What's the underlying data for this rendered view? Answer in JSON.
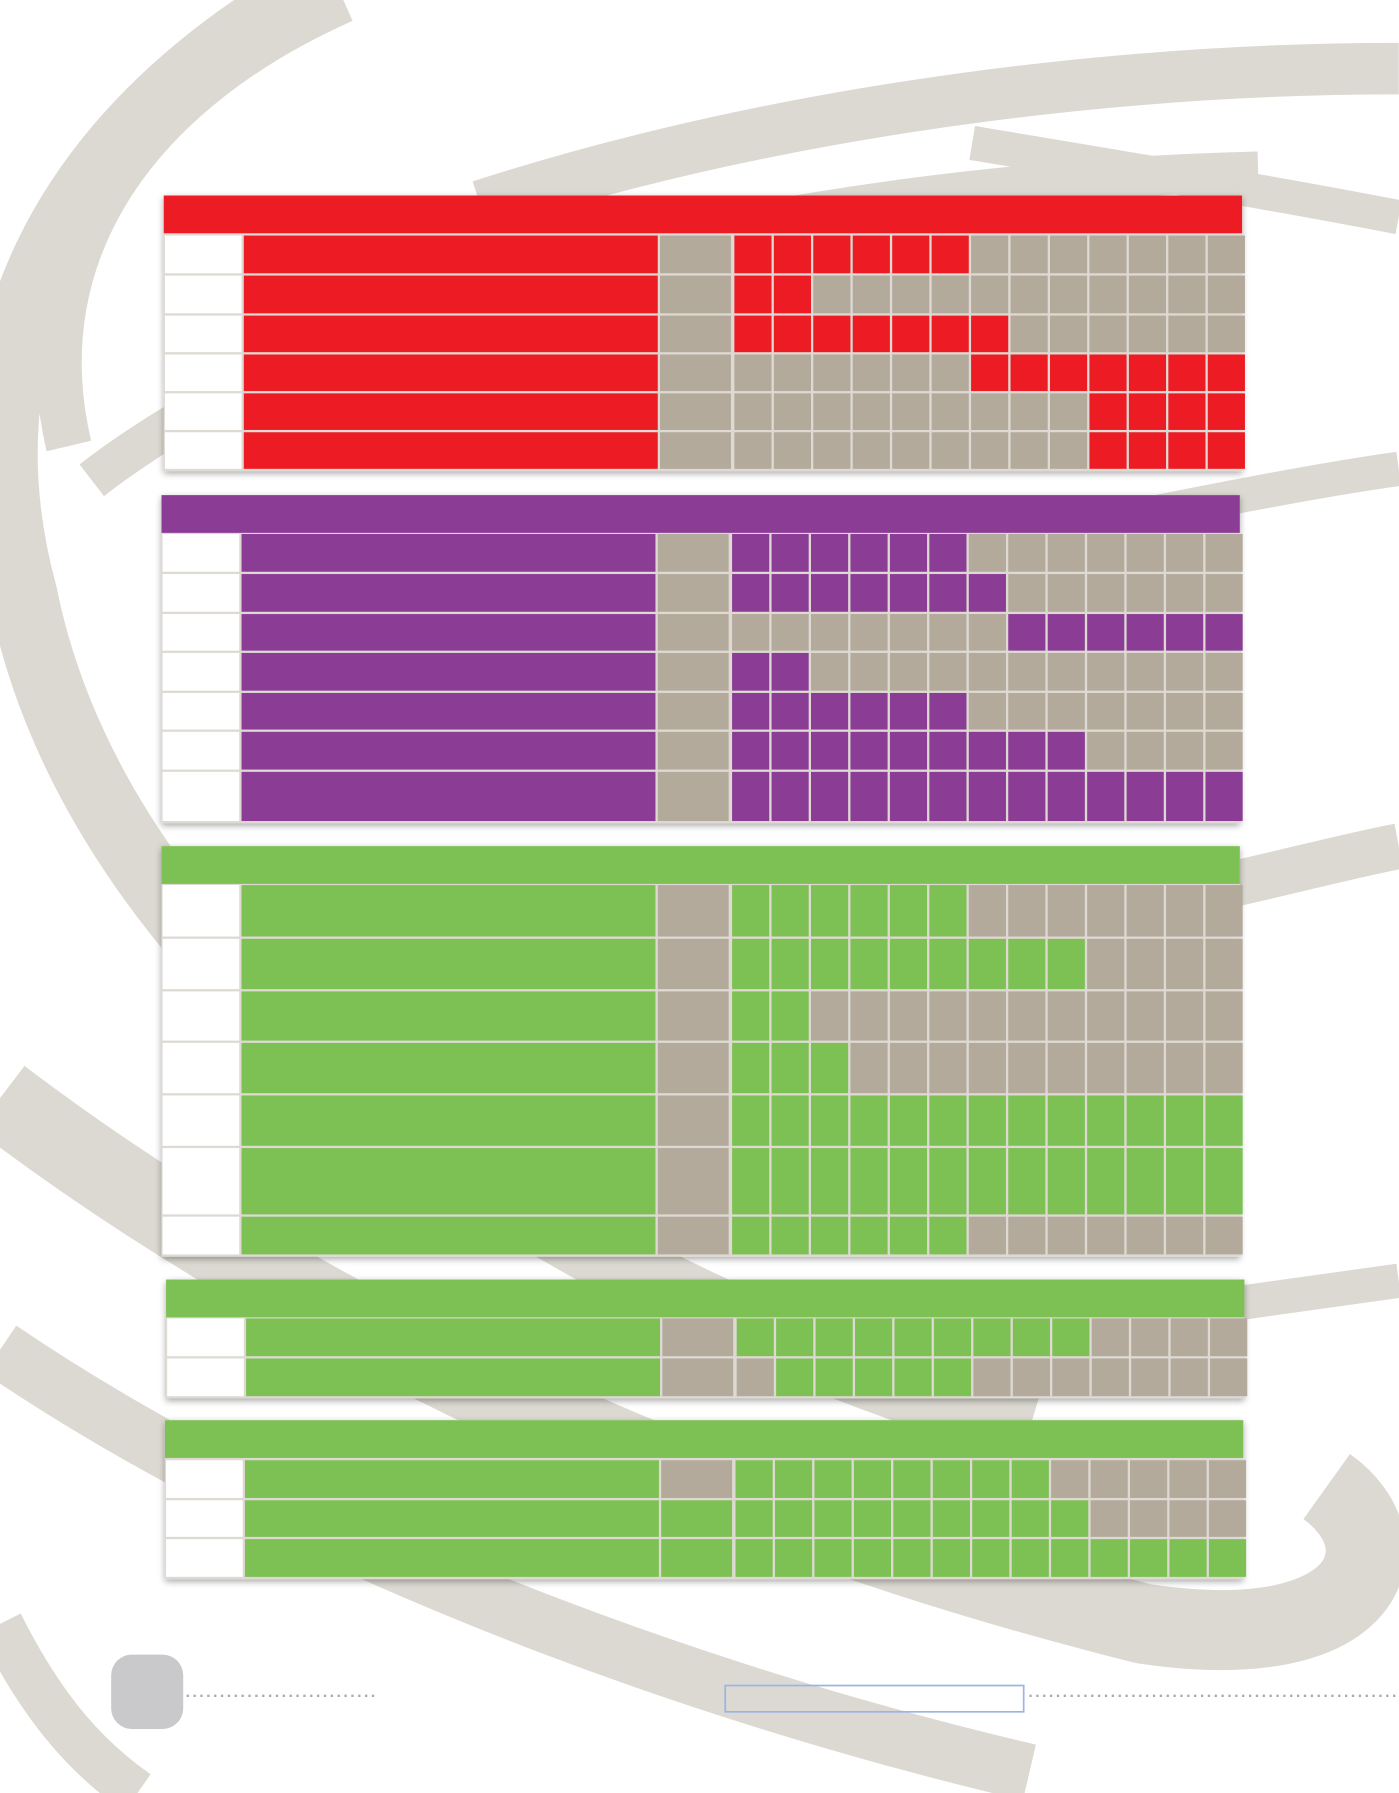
{
  "sections": [
    {
      "color": "#ed1c24",
      "rows": [
        [
          0,
          1,
          1,
          1,
          1,
          1,
          1,
          0,
          0,
          0,
          0,
          0,
          0,
          0
        ],
        [
          0,
          1,
          1,
          0,
          0,
          0,
          0,
          0,
          0,
          0,
          0,
          0,
          0,
          0
        ],
        [
          0,
          1,
          1,
          1,
          1,
          1,
          1,
          1,
          0,
          0,
          0,
          0,
          0,
          0
        ],
        [
          0,
          0,
          0,
          0,
          0,
          0,
          0,
          1,
          1,
          1,
          1,
          1,
          1,
          1
        ],
        [
          0,
          0,
          0,
          0,
          0,
          0,
          0,
          0,
          0,
          0,
          1,
          1,
          1,
          1
        ],
        [
          0,
          0,
          0,
          0,
          0,
          0,
          0,
          0,
          0,
          0,
          1,
          1,
          1,
          1
        ]
      ]
    },
    {
      "color": "#8b3d96",
      "rows": [
        [
          0,
          1,
          1,
          1,
          1,
          1,
          1,
          0,
          0,
          0,
          0,
          0,
          0,
          0
        ],
        [
          0,
          1,
          1,
          1,
          1,
          1,
          1,
          1,
          0,
          0,
          0,
          0,
          0,
          0
        ],
        [
          0,
          0,
          0,
          0,
          0,
          0,
          0,
          0,
          1,
          1,
          1,
          1,
          1,
          1
        ],
        [
          0,
          1,
          1,
          0,
          0,
          0,
          0,
          0,
          0,
          0,
          0,
          0,
          0,
          0
        ],
        [
          0,
          1,
          1,
          1,
          1,
          1,
          1,
          0,
          0,
          0,
          0,
          0,
          0,
          0
        ],
        [
          0,
          1,
          1,
          1,
          1,
          1,
          1,
          1,
          1,
          1,
          0,
          0,
          0,
          0
        ],
        [
          0,
          1,
          1,
          1,
          1,
          1,
          1,
          1,
          1,
          1,
          1,
          1,
          1,
          1
        ]
      ]
    },
    {
      "color": "#7dc154",
      "rows": [
        [
          0,
          1,
          1,
          1,
          1,
          1,
          1,
          0,
          0,
          0,
          0,
          0,
          0,
          0
        ],
        [
          0,
          1,
          1,
          1,
          1,
          1,
          1,
          1,
          1,
          1,
          0,
          0,
          0,
          0
        ],
        [
          0,
          1,
          1,
          0,
          0,
          0,
          0,
          0,
          0,
          0,
          0,
          0,
          0,
          0
        ],
        [
          0,
          1,
          1,
          1,
          0,
          0,
          0,
          0,
          0,
          0,
          0,
          0,
          0,
          0
        ],
        [
          0,
          1,
          1,
          1,
          1,
          1,
          1,
          1,
          1,
          1,
          1,
          1,
          1,
          1
        ],
        [
          0,
          1,
          1,
          1,
          1,
          1,
          1,
          1,
          1,
          1,
          1,
          1,
          1,
          1
        ],
        [
          0,
          1,
          1,
          1,
          1,
          1,
          1,
          0,
          0,
          0,
          0,
          0,
          0,
          0
        ]
      ]
    },
    {
      "color": "#7dc154",
      "rows": [
        [
          0,
          1,
          1,
          1,
          1,
          1,
          1,
          1,
          1,
          1,
          0,
          0,
          0,
          0
        ],
        [
          0,
          0,
          1,
          1,
          1,
          1,
          1,
          0,
          0,
          0,
          0,
          0,
          0,
          0
        ]
      ]
    },
    {
      "color": "#7dc154",
      "rows": [
        [
          0,
          1,
          1,
          1,
          1,
          1,
          1,
          1,
          1,
          0,
          0,
          0,
          0,
          0
        ],
        [
          1,
          1,
          1,
          1,
          1,
          1,
          1,
          1,
          1,
          1,
          0,
          0,
          0,
          0
        ],
        [
          1,
          1,
          1,
          1,
          1,
          1,
          1,
          1,
          1,
          1,
          1,
          1,
          1,
          1
        ]
      ]
    }
  ]
}
